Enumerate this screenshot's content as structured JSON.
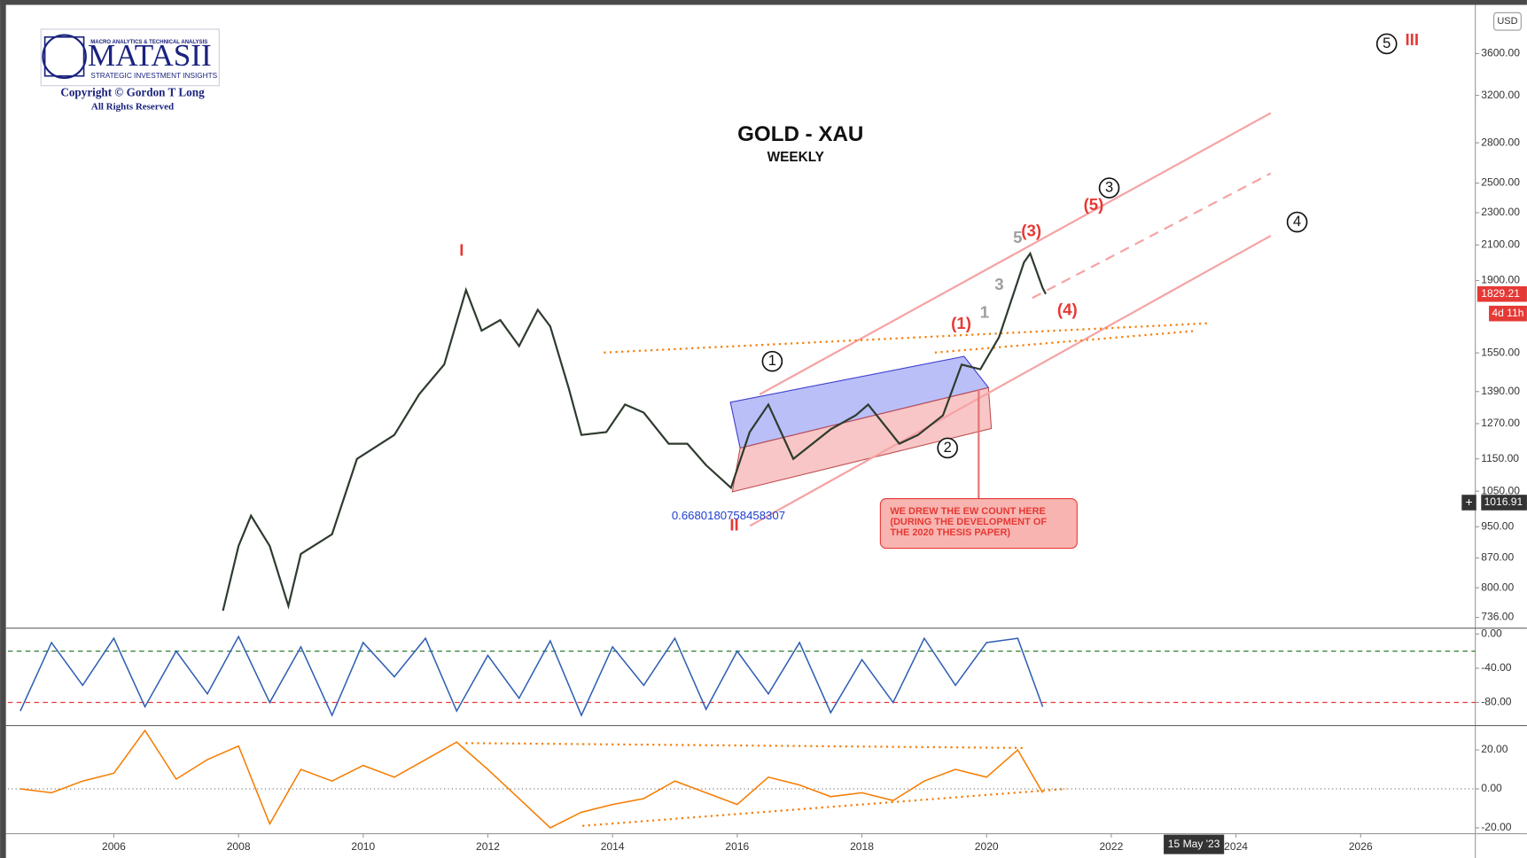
{
  "chart_data": [
    {
      "type": "line",
      "title": "GOLD - XAU",
      "subtitle": "WEEKLY",
      "log_scale": true,
      "grid": false,
      "currency": "USD",
      "logo": {
        "name": "MATASII",
        "tagline_top": "MACRO ANALYTICS & TECHNICAL ANALYSIS",
        "tagline_bottom": "STRATEGIC INVESTMENT INSIGHTS",
        "copyright": "Copyright © Gordon T Long",
        "rights": "All Rights Reserved"
      },
      "series": [
        {
          "name": "XAU",
          "color": "#2e3b2e",
          "x": [
            2007.75,
            2008.0,
            2008.2,
            2008.5,
            2008.8,
            2009.0,
            2009.5,
            2009.9,
            2010.5,
            2010.9,
            2011.3,
            2011.65,
            2011.9,
            2012.2,
            2012.5,
            2012.8,
            2013.0,
            2013.3,
            2013.5,
            2013.9,
            2014.2,
            2014.5,
            2014.9,
            2015.2,
            2015.5,
            2015.9,
            2016.2,
            2016.5,
            2016.9,
            2017.5,
            2017.9,
            2018.1,
            2018.6,
            2018.9,
            2019.3,
            2019.6,
            2019.9,
            2020.2,
            2020.6,
            2020.7,
            2020.9,
            2020.95
          ],
          "values": [
            750,
            900,
            980,
            900,
            760,
            880,
            930,
            1150,
            1230,
            1380,
            1500,
            1850,
            1650,
            1700,
            1580,
            1750,
            1670,
            1400,
            1230,
            1240,
            1340,
            1310,
            1200,
            1200,
            1130,
            1060,
            1240,
            1340,
            1150,
            1250,
            1300,
            1340,
            1200,
            1230,
            1300,
            1500,
            1480,
            1620,
            2000,
            2050,
            1860,
            1829
          ]
        }
      ],
      "last_price": 1829.21,
      "countdown": "4d 11h",
      "crosshair_price": 1016.91,
      "crosshair_date": "15 May '23",
      "xlim": [
        2004.3,
        2027.84
      ],
      "xticks": [
        2006,
        2008,
        2010,
        2012,
        2014,
        2016,
        2018,
        2020,
        2022,
        2024,
        2026
      ],
      "ylim": [
        714,
        4095
      ],
      "yticks": [
        {
          "value": 736,
          "label": "736.00"
        },
        {
          "value": 800,
          "label": "800.00"
        },
        {
          "value": 870,
          "label": "870.00"
        },
        {
          "value": 950,
          "label": "950.00"
        },
        {
          "value": 1050,
          "label": "1050.00"
        },
        {
          "value": 1150,
          "label": "1150.00"
        },
        {
          "value": 1270,
          "label": "1270.00"
        },
        {
          "value": 1390,
          "label": "1390.00"
        },
        {
          "value": 1550,
          "label": "1550.00"
        },
        {
          "value": 1900,
          "label": "1900.00"
        },
        {
          "value": 2100,
          "label": "2100.00"
        },
        {
          "value": 2300,
          "label": "2300.00"
        },
        {
          "value": 2500,
          "label": "2500.00"
        },
        {
          "value": 2800,
          "label": "2800.00"
        },
        {
          "value": 3200,
          "label": "3200.00"
        },
        {
          "value": 3600,
          "label": "3600.00"
        }
      ],
      "annotations": [
        {
          "text": "I",
          "color": "#e53935"
        },
        {
          "text": "II",
          "color": "#e53935"
        },
        {
          "text": "III",
          "color": "#e53935"
        },
        {
          "text": "5",
          "color": "#111111",
          "circled": true
        },
        {
          "text": "1",
          "color": "#111111",
          "circled": true
        },
        {
          "text": "2",
          "color": "#111111",
          "circled": true
        },
        {
          "text": "3",
          "color": "#111111",
          "circled": true
        },
        {
          "text": "4",
          "color": "#111111",
          "circled": true
        },
        {
          "text": "(1)",
          "color": "#e53935"
        },
        {
          "text": "(3)",
          "color": "#e53935"
        },
        {
          "text": "(4)",
          "color": "#e53935"
        },
        {
          "text": "(5)",
          "color": "#e53935"
        },
        {
          "text": "1",
          "color": "#9e9e9e"
        },
        {
          "text": "3",
          "color": "#9e9e9e"
        },
        {
          "text": "5",
          "color": "#9e9e9e"
        },
        {
          "text": "0.6680180758458307",
          "color": "#1e40d0"
        }
      ],
      "callout": [
        "WE DREW THE EW COUNT HERE",
        "(DURING THE DEVELOPMENT OF",
        "THE 2020 THESIS PAPER)"
      ]
    },
    {
      "type": "line",
      "xlim": [
        2004.3,
        2027.84
      ],
      "ylim": [
        -107,
        5.7
      ],
      "yticks": [
        {
          "value": 0,
          "label": "0.00"
        },
        {
          "value": -40,
          "label": "-40.00"
        },
        {
          "value": -80,
          "label": "-80.00"
        }
      ],
      "ref_lines": [
        {
          "value": -20,
          "color": "#2e7d32"
        },
        {
          "value": -80,
          "color": "#e53935"
        }
      ],
      "series": [
        {
          "color": "#2f5fb3",
          "x": [
            2004.5,
            2005,
            2005.5,
            2006,
            2006.5,
            2007,
            2007.5,
            2008,
            2008.5,
            2009,
            2009.5,
            2010,
            2010.5,
            2011,
            2011.5,
            2012,
            2012.5,
            2013,
            2013.5,
            2014,
            2014.5,
            2015,
            2015.5,
            2016,
            2016.5,
            2017,
            2017.5,
            2018,
            2018.5,
            2019,
            2019.5,
            2020,
            2020.5,
            2020.9
          ],
          "values": [
            -90,
            -10,
            -60,
            -5,
            -85,
            -20,
            -70,
            -3,
            -80,
            -15,
            -95,
            -10,
            -50,
            -5,
            -90,
            -25,
            -75,
            -8,
            -95,
            -15,
            -60,
            -5,
            -88,
            -20,
            -70,
            -10,
            -92,
            -30,
            -80,
            -5,
            -60,
            -10,
            -5,
            -85
          ]
        }
      ]
    },
    {
      "type": "line",
      "xlim": [
        2004.3,
        2027.84
      ],
      "ylim": [
        -22.5,
        32
      ],
      "yticks": [
        {
          "value": 20,
          "label": "20.00"
        },
        {
          "value": 0,
          "label": "0.00"
        },
        {
          "value": -20,
          "label": "-20.00"
        }
      ],
      "ref_lines": [
        {
          "value": 0,
          "color": "#777777"
        }
      ],
      "series": [
        {
          "color": "#f57c00",
          "x": [
            2004.5,
            2005,
            2005.5,
            2006,
            2006.5,
            2007,
            2007.5,
            2008,
            2008.5,
            2009,
            2009.5,
            2010,
            2010.5,
            2011,
            2011.5,
            2012,
            2012.5,
            2013,
            2013.5,
            2014,
            2014.5,
            2015,
            2015.5,
            2016,
            2016.5,
            2017,
            2017.5,
            2018,
            2018.5,
            2019,
            2019.5,
            2020,
            2020.5,
            2020.9
          ],
          "values": [
            0,
            -2,
            4,
            8,
            30,
            5,
            15,
            22,
            -18,
            10,
            4,
            12,
            6,
            15,
            24,
            10,
            -5,
            -20,
            -12,
            -8,
            -5,
            4,
            -2,
            -8,
            6,
            2,
            -4,
            -2,
            -6,
            4,
            10,
            6,
            20,
            -2
          ]
        }
      ]
    }
  ]
}
